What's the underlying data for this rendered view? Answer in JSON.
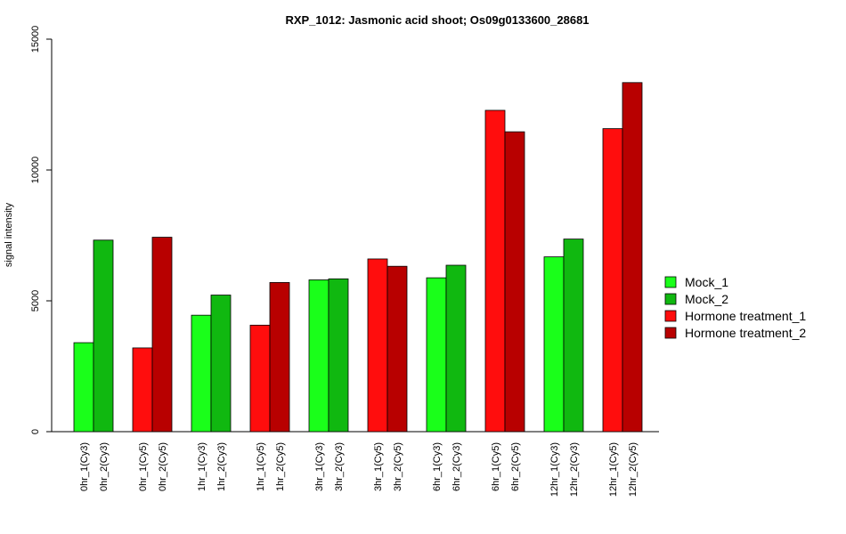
{
  "chart_data": {
    "type": "bar",
    "title": "RXP_1012: Jasmonic acid shoot; Os09g0133600_28681",
    "xlabel": "",
    "ylabel": "signal intensity",
    "ylim": [
      0,
      15000
    ],
    "yticks": [
      0,
      5000,
      10000,
      15000
    ],
    "grid": false,
    "legend_position": "right",
    "series_legend": [
      {
        "name": "Mock_1",
        "color": "#1aff1a"
      },
      {
        "name": "Mock_2",
        "color": "#10b810"
      },
      {
        "name": "Hormone treatment_1",
        "color": "#ff0d0d"
      },
      {
        "name": "Hormone treatment_2",
        "color": "#b80000"
      }
    ],
    "bars": [
      {
        "label": "0hr_1(Cy3)",
        "value": 3400,
        "series": "Mock_1"
      },
      {
        "label": "0hr_2(Cy3)",
        "value": 7320,
        "series": "Mock_2"
      },
      {
        "label": "0hr_1(Cy5)",
        "value": 3200,
        "series": "Hormone treatment_1"
      },
      {
        "label": "0hr_2(Cy5)",
        "value": 7430,
        "series": "Hormone treatment_2"
      },
      {
        "label": "1hr_1(Cy3)",
        "value": 4450,
        "series": "Mock_1"
      },
      {
        "label": "1hr_2(Cy3)",
        "value": 5220,
        "series": "Mock_2"
      },
      {
        "label": "1hr_1(Cy5)",
        "value": 4070,
        "series": "Hormone treatment_1"
      },
      {
        "label": "1hr_2(Cy5)",
        "value": 5700,
        "series": "Hormone treatment_2"
      },
      {
        "label": "3hr_1(Cy3)",
        "value": 5800,
        "series": "Mock_1"
      },
      {
        "label": "3hr_2(Cy3)",
        "value": 5840,
        "series": "Mock_2"
      },
      {
        "label": "3hr_1(Cy5)",
        "value": 6600,
        "series": "Hormone treatment_1"
      },
      {
        "label": "3hr_2(Cy5)",
        "value": 6320,
        "series": "Hormone treatment_2"
      },
      {
        "label": "6hr_1(Cy3)",
        "value": 5880,
        "series": "Mock_1"
      },
      {
        "label": "6hr_2(Cy3)",
        "value": 6360,
        "series": "Mock_2"
      },
      {
        "label": "6hr_1(Cy5)",
        "value": 12280,
        "series": "Hormone treatment_1"
      },
      {
        "label": "6hr_2(Cy5)",
        "value": 11460,
        "series": "Hormone treatment_2"
      },
      {
        "label": "12hr_1(Cy3)",
        "value": 6680,
        "series": "Mock_1"
      },
      {
        "label": "12hr_2(Cy3)",
        "value": 7360,
        "series": "Mock_2"
      },
      {
        "label": "12hr_1(Cy5)",
        "value": 11580,
        "series": "Hormone treatment_1"
      },
      {
        "label": "12hr_2(Cy5)",
        "value": 13340,
        "series": "Hormone treatment_2"
      }
    ]
  }
}
